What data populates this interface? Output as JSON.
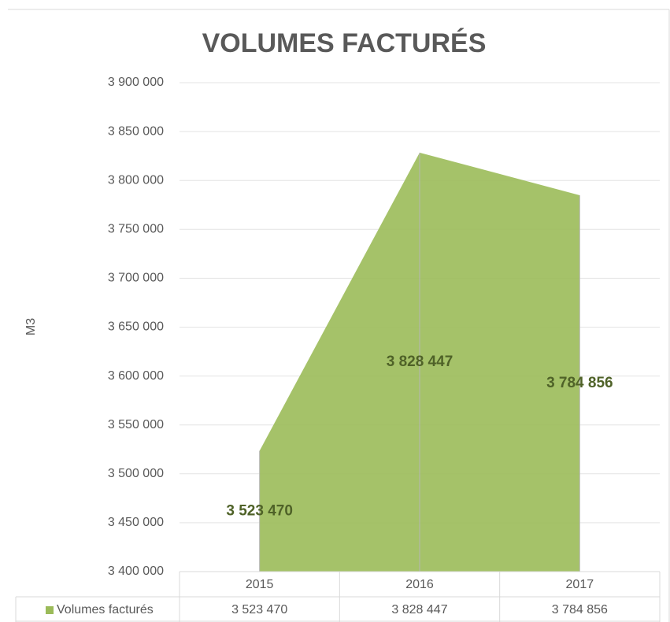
{
  "chart_data": {
    "type": "area",
    "title": "VOLUMES FACTURÉS",
    "y_label": "M3",
    "categories": [
      "2015",
      "2016",
      "2017"
    ],
    "series": [
      {
        "name": "Volumes facturés",
        "color": "#9bbb59",
        "label_color": "#4f6228",
        "values": [
          3523470,
          3828447,
          3784856
        ],
        "value_labels": [
          "3 523 470",
          "3 828 447",
          "3 784 856"
        ]
      }
    ],
    "ylim": [
      3400000,
      3900000
    ],
    "yticks": [
      {
        "value": 3400000,
        "label": "3 400 000"
      },
      {
        "value": 3450000,
        "label": "3 450 000"
      },
      {
        "value": 3500000,
        "label": "3 500 000"
      },
      {
        "value": 3550000,
        "label": "3 550 000"
      },
      {
        "value": 3600000,
        "label": "3 600 000"
      },
      {
        "value": 3650000,
        "label": "3 650 000"
      },
      {
        "value": 3700000,
        "label": "3 700 000"
      },
      {
        "value": 3750000,
        "label": "3 750 000"
      },
      {
        "value": 3800000,
        "label": "3 800 000"
      },
      {
        "value": 3850000,
        "label": "3 850 000"
      },
      {
        "value": 3900000,
        "label": "3 900 000"
      }
    ],
    "grid": true,
    "data_table": true
  }
}
